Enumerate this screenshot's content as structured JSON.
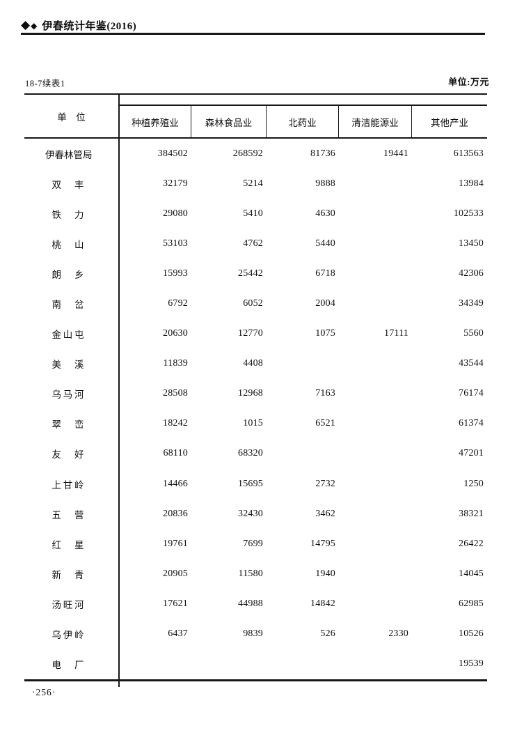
{
  "page": {
    "book_title": "伊春统计年鉴(2016)",
    "table_label": "18-7续表1",
    "unit_note": "单位:万元",
    "page_number": "·256·"
  },
  "icons": {
    "diamond_large": "◆",
    "diamond_small": "◆"
  },
  "table": {
    "unit_header": "单　位",
    "columns": [
      "种植养殖业",
      "森林食品业",
      "北药业",
      "清洁能源业",
      "其他产业"
    ],
    "rows": [
      {
        "name": "伊春林管局",
        "values": [
          384502,
          268592,
          81736,
          19441,
          613563
        ]
      },
      {
        "name": "双丰",
        "values": [
          32179,
          5214,
          9888,
          null,
          13984
        ]
      },
      {
        "name": "铁力",
        "values": [
          29080,
          5410,
          4630,
          null,
          102533
        ]
      },
      {
        "name": "桃山",
        "values": [
          53103,
          4762,
          5440,
          null,
          13450
        ]
      },
      {
        "name": "朗乡",
        "values": [
          15993,
          25442,
          6718,
          null,
          42306
        ]
      },
      {
        "name": "南岔",
        "values": [
          6792,
          6052,
          2004,
          null,
          34349
        ]
      },
      {
        "name": "金山屯",
        "values": [
          20630,
          12770,
          1075,
          17111,
          5560
        ]
      },
      {
        "name": "美溪",
        "values": [
          11839,
          4408,
          null,
          null,
          43544
        ]
      },
      {
        "name": "乌马河",
        "values": [
          28508,
          12968,
          7163,
          null,
          76174
        ]
      },
      {
        "name": "翠峦",
        "values": [
          18242,
          1015,
          6521,
          null,
          61374
        ]
      },
      {
        "name": "友好",
        "values": [
          68110,
          68320,
          null,
          null,
          47201
        ]
      },
      {
        "name": "上甘岭",
        "values": [
          14466,
          15695,
          2732,
          null,
          1250
        ]
      },
      {
        "name": "五营",
        "values": [
          20836,
          32430,
          3462,
          null,
          38321
        ]
      },
      {
        "name": "红星",
        "values": [
          19761,
          7699,
          14795,
          null,
          26422
        ]
      },
      {
        "name": "新青",
        "values": [
          20905,
          11580,
          1940,
          null,
          14045
        ]
      },
      {
        "name": "汤旺河",
        "values": [
          17621,
          44988,
          14842,
          null,
          62985
        ]
      },
      {
        "name": "乌伊岭",
        "values": [
          6437,
          9839,
          526,
          2330,
          10526
        ]
      },
      {
        "name": "电厂",
        "values": [
          null,
          null,
          null,
          null,
          19539
        ]
      }
    ]
  }
}
